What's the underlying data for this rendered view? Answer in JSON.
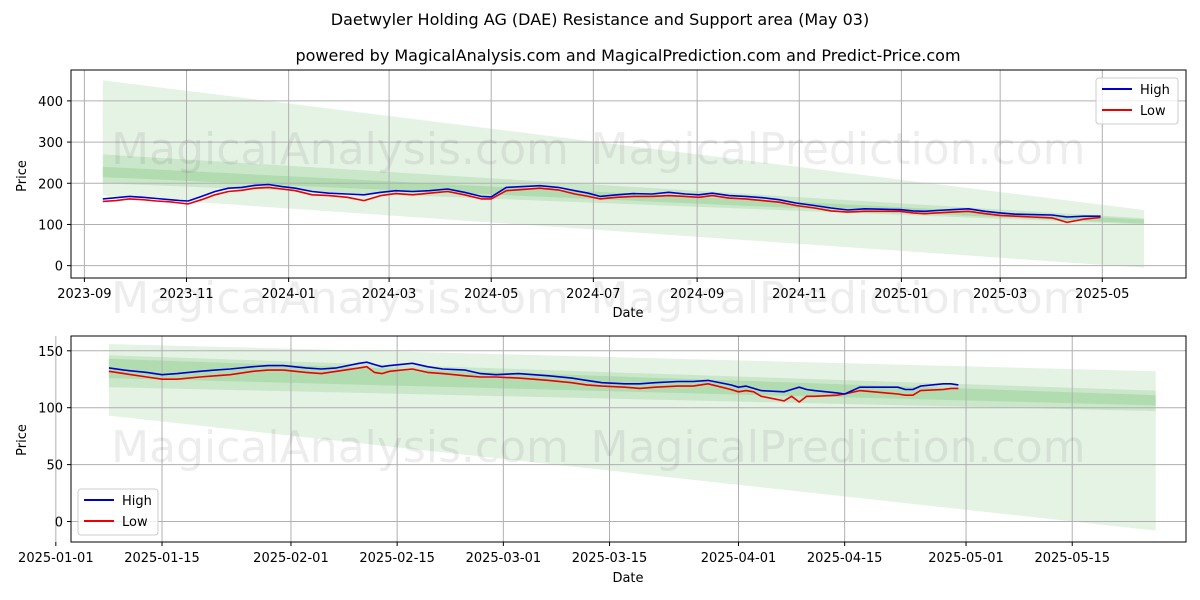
{
  "page": {
    "title": "Daetwyler Holding AG (DAE) Resistance and Support area (May 03)",
    "subtitle": "powered by MagicalAnalysis.com and MagicalPrediction.com and Predict-Price.com",
    "watermarks": [
      "MagicalAnalysis.com",
      "MagicalPrediction.com"
    ]
  },
  "colors": {
    "high": "#0000cc",
    "low": "#ee0000",
    "band": "#2ca02c",
    "grid": "#b0b0b0"
  },
  "chart_data": [
    {
      "type": "line",
      "xlabel": "Date",
      "ylabel": "Price",
      "xlim": [
        "2023-08-24",
        "2025-06-20"
      ],
      "ylim": [
        -30,
        475
      ],
      "xticks": [
        "2023-09",
        "2023-11",
        "2024-01",
        "2024-03",
        "2024-05",
        "2024-07",
        "2024-09",
        "2024-11",
        "2025-01",
        "2025-03",
        "2025-05"
      ],
      "yticks": [
        0,
        100,
        200,
        300,
        400
      ],
      "legend": {
        "position": "top-right",
        "entries": [
          "High",
          "Low"
        ]
      },
      "bands": [
        {
          "name": "outer",
          "x": [
            "2023-09-12",
            "2025-05-26"
          ],
          "upper": [
            450,
            135
          ],
          "lower": [
            170,
            -5
          ]
        },
        {
          "name": "middle",
          "x": [
            "2023-09-12",
            "2025-05-26"
          ],
          "upper": [
            270,
            115
          ],
          "lower": [
            200,
            100
          ]
        },
        {
          "name": "inner",
          "x": [
            "2023-09-12",
            "2025-05-26"
          ],
          "upper": [
            240,
            112
          ],
          "lower": [
            215,
            102
          ]
        }
      ],
      "series": [
        {
          "name": "High",
          "x": [
            "2023-09-12",
            "2023-09-20",
            "2023-09-28",
            "2023-10-06",
            "2023-10-14",
            "2023-10-22",
            "2023-10-28",
            "2023-11-02",
            "2023-11-10",
            "2023-11-18",
            "2023-11-26",
            "2023-12-04",
            "2023-12-12",
            "2023-12-20",
            "2023-12-28",
            "2024-01-05",
            "2024-01-15",
            "2024-01-25",
            "2024-02-05",
            "2024-02-15",
            "2024-02-25",
            "2024-03-05",
            "2024-03-15",
            "2024-03-25",
            "2024-04-05",
            "2024-04-15",
            "2024-04-25",
            "2024-05-01",
            "2024-05-10",
            "2024-05-20",
            "2024-05-30",
            "2024-06-10",
            "2024-06-20",
            "2024-06-28",
            "2024-07-05",
            "2024-07-15",
            "2024-07-25",
            "2024-08-05",
            "2024-08-15",
            "2024-08-25",
            "2024-09-02",
            "2024-09-10",
            "2024-09-20",
            "2024-09-30",
            "2024-10-10",
            "2024-10-20",
            "2024-10-30",
            "2024-11-10",
            "2024-11-20",
            "2024-11-30",
            "2024-12-10",
            "2024-12-20",
            "2024-12-31",
            "2025-01-08",
            "2025-01-15",
            "2025-01-22",
            "2025-02-01",
            "2025-02-10",
            "2025-02-20",
            "2025-03-01",
            "2025-03-10",
            "2025-03-20",
            "2025-04-01",
            "2025-04-10",
            "2025-04-20",
            "2025-04-30"
          ],
          "values": [
            162,
            165,
            168,
            166,
            163,
            160,
            158,
            157,
            168,
            180,
            188,
            190,
            195,
            197,
            192,
            188,
            180,
            176,
            174,
            172,
            178,
            182,
            180,
            182,
            186,
            178,
            168,
            167,
            190,
            192,
            194,
            190,
            182,
            176,
            168,
            172,
            175,
            174,
            178,
            174,
            172,
            176,
            170,
            168,
            165,
            160,
            152,
            146,
            140,
            135,
            138,
            137,
            136,
            133,
            132,
            134,
            136,
            138,
            132,
            128,
            125,
            124,
            123,
            118,
            120,
            120
          ]
        },
        {
          "name": "Low",
          "x": [
            "2023-09-12",
            "2023-09-20",
            "2023-09-28",
            "2023-10-06",
            "2023-10-14",
            "2023-10-22",
            "2023-10-28",
            "2023-11-02",
            "2023-11-10",
            "2023-11-18",
            "2023-11-26",
            "2023-12-04",
            "2023-12-12",
            "2023-12-20",
            "2023-12-28",
            "2024-01-05",
            "2024-01-15",
            "2024-01-25",
            "2024-02-05",
            "2024-02-15",
            "2024-02-25",
            "2024-03-05",
            "2024-03-15",
            "2024-03-25",
            "2024-04-05",
            "2024-04-15",
            "2024-04-25",
            "2024-05-01",
            "2024-05-10",
            "2024-05-20",
            "2024-05-30",
            "2024-06-10",
            "2024-06-20",
            "2024-06-28",
            "2024-07-05",
            "2024-07-15",
            "2024-07-25",
            "2024-08-05",
            "2024-08-15",
            "2024-08-25",
            "2024-09-02",
            "2024-09-10",
            "2024-09-20",
            "2024-09-30",
            "2024-10-10",
            "2024-10-20",
            "2024-10-30",
            "2024-11-10",
            "2024-11-20",
            "2024-11-30",
            "2024-12-10",
            "2024-12-20",
            "2024-12-31",
            "2025-01-08",
            "2025-01-15",
            "2025-01-22",
            "2025-02-01",
            "2025-02-10",
            "2025-02-20",
            "2025-03-01",
            "2025-03-10",
            "2025-03-20",
            "2025-04-01",
            "2025-04-10",
            "2025-04-20",
            "2025-04-30"
          ],
          "values": [
            156,
            158,
            162,
            160,
            157,
            155,
            152,
            150,
            160,
            172,
            180,
            183,
            188,
            190,
            186,
            182,
            172,
            170,
            166,
            158,
            170,
            175,
            172,
            176,
            180,
            172,
            162,
            162,
            182,
            185,
            188,
            184,
            174,
            168,
            162,
            166,
            168,
            168,
            170,
            168,
            166,
            170,
            164,
            162,
            158,
            154,
            146,
            140,
            133,
            130,
            132,
            132,
            132,
            128,
            126,
            128,
            130,
            132,
            126,
            122,
            120,
            118,
            116,
            105,
            113,
            117
          ]
        }
      ]
    },
    {
      "type": "line",
      "xlabel": "Date",
      "ylabel": "Price",
      "xlim": [
        "2025-01-03",
        "2025-05-30"
      ],
      "ylim": [
        -18,
        163
      ],
      "xticks": [
        "2025-01-01",
        "2025-01-15",
        "2025-02-01",
        "2025-02-15",
        "2025-03-01",
        "2025-03-15",
        "2025-04-01",
        "2025-04-15",
        "2025-05-01",
        "2025-05-15"
      ],
      "yticks": [
        0,
        50,
        100,
        150
      ],
      "legend": {
        "position": "bottom-left",
        "entries": [
          "High",
          "Low"
        ]
      },
      "bands": [
        {
          "name": "outer",
          "x": [
            "2025-01-08",
            "2025-05-26"
          ],
          "upper": [
            156,
            132
          ],
          "lower": [
            93,
            -8
          ]
        },
        {
          "name": "middle",
          "x": [
            "2025-01-08",
            "2025-05-26"
          ],
          "upper": [
            146,
            115
          ],
          "lower": [
            118,
            97
          ]
        },
        {
          "name": "inner",
          "x": [
            "2025-01-08",
            "2025-05-26"
          ],
          "upper": [
            143,
            111
          ],
          "lower": [
            126,
            102
          ]
        }
      ],
      "series": [
        {
          "name": "High",
          "x": [
            "2025-01-08",
            "2025-01-10",
            "2025-01-13",
            "2025-01-15",
            "2025-01-17",
            "2025-01-20",
            "2025-01-22",
            "2025-01-24",
            "2025-01-27",
            "2025-01-29",
            "2025-01-31",
            "2025-02-03",
            "2025-02-05",
            "2025-02-07",
            "2025-02-10",
            "2025-02-11",
            "2025-02-12",
            "2025-02-13",
            "2025-02-14",
            "2025-02-17",
            "2025-02-19",
            "2025-02-21",
            "2025-02-24",
            "2025-02-26",
            "2025-02-28",
            "2025-03-03",
            "2025-03-05",
            "2025-03-07",
            "2025-03-10",
            "2025-03-12",
            "2025-03-14",
            "2025-03-17",
            "2025-03-19",
            "2025-03-21",
            "2025-03-24",
            "2025-03-26",
            "2025-03-28",
            "2025-03-31",
            "2025-04-01",
            "2025-04-02",
            "2025-04-03",
            "2025-04-04",
            "2025-04-07",
            "2025-04-08",
            "2025-04-09",
            "2025-04-10",
            "2025-04-11",
            "2025-04-14",
            "2025-04-15",
            "2025-04-17",
            "2025-04-22",
            "2025-04-23",
            "2025-04-24",
            "2025-04-25",
            "2025-04-28",
            "2025-04-29",
            "2025-04-30"
          ],
          "values": [
            135,
            133,
            131,
            129,
            130,
            132,
            133,
            134,
            136,
            137,
            137,
            135,
            134,
            135,
            139,
            140,
            138,
            136,
            137,
            139,
            136,
            134,
            133,
            130,
            129,
            130,
            129,
            128,
            126,
            124,
            122,
            121,
            121,
            122,
            123,
            123,
            124,
            120,
            118,
            119,
            117,
            115,
            114,
            116,
            118,
            116,
            115,
            113,
            112,
            118,
            118,
            116,
            116,
            119,
            121,
            121,
            120
          ]
        },
        {
          "name": "Low",
          "x": [
            "2025-01-08",
            "2025-01-10",
            "2025-01-13",
            "2025-01-15",
            "2025-01-17",
            "2025-01-20",
            "2025-01-22",
            "2025-01-24",
            "2025-01-27",
            "2025-01-29",
            "2025-01-31",
            "2025-02-03",
            "2025-02-05",
            "2025-02-07",
            "2025-02-10",
            "2025-02-11",
            "2025-02-12",
            "2025-02-13",
            "2025-02-14",
            "2025-02-17",
            "2025-02-19",
            "2025-02-21",
            "2025-02-24",
            "2025-02-26",
            "2025-02-28",
            "2025-03-03",
            "2025-03-05",
            "2025-03-07",
            "2025-03-10",
            "2025-03-12",
            "2025-03-14",
            "2025-03-17",
            "2025-03-19",
            "2025-03-21",
            "2025-03-24",
            "2025-03-26",
            "2025-03-28",
            "2025-03-31",
            "2025-04-01",
            "2025-04-02",
            "2025-04-03",
            "2025-04-04",
            "2025-04-07",
            "2025-04-08",
            "2025-04-09",
            "2025-04-10",
            "2025-04-11",
            "2025-04-14",
            "2025-04-15",
            "2025-04-17",
            "2025-04-22",
            "2025-04-23",
            "2025-04-24",
            "2025-04-25",
            "2025-04-28",
            "2025-04-29",
            "2025-04-30"
          ],
          "values": [
            132,
            130,
            127,
            125,
            125,
            127,
            128,
            129,
            132,
            133,
            133,
            131,
            130,
            132,
            135,
            136,
            131,
            130,
            132,
            134,
            131,
            130,
            128,
            127,
            127,
            126,
            125,
            124,
            122,
            120,
            119,
            118,
            117,
            118,
            119,
            119,
            121,
            116,
            114,
            115,
            114,
            110,
            106,
            110,
            105,
            110,
            110,
            111,
            112,
            115,
            112,
            111,
            111,
            115,
            116,
            117,
            117
          ]
        }
      ]
    }
  ]
}
